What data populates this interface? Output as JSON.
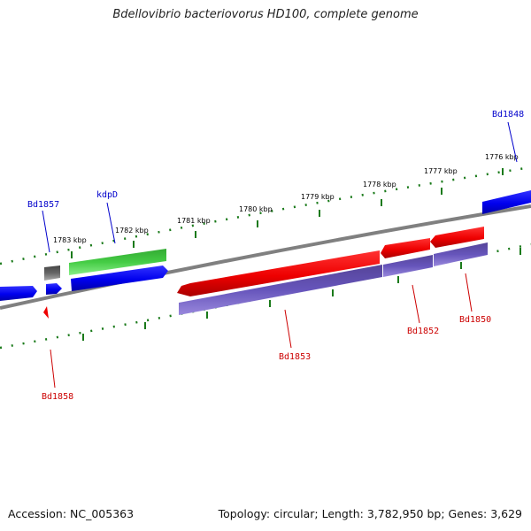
{
  "title": "Bdellovibrio bacteriovorus HD100, complete genome",
  "footer": {
    "accession": "Accession: NC_005363",
    "topology": "Topology: circular; Length: 3,782,950 bp; Genes: 3,629"
  },
  "ticks": [
    "1776 kbp",
    "1777 kbp",
    "1778 kbp",
    "1779 kbp",
    "1780 kbp",
    "1781 kbp",
    "1782 kbp",
    "1783 kbp"
  ],
  "gene_labels": {
    "top": [
      "Bd1848",
      "kdpD",
      "Bd1857"
    ],
    "bottom": [
      "Bd1850",
      "Bd1852",
      "Bd1853",
      "Bd1858"
    ]
  },
  "colors": {
    "forward_gene": "#0000ee",
    "reverse_gene": "#ee0000",
    "green_gene": "#33bb33",
    "gray_gene": "#666666",
    "purple_gene": "#6655bb",
    "backbone": "#808080",
    "tick_marks": "#1a7a1a",
    "top_label": "#0000cc",
    "bottom_label": "#cc0000"
  }
}
